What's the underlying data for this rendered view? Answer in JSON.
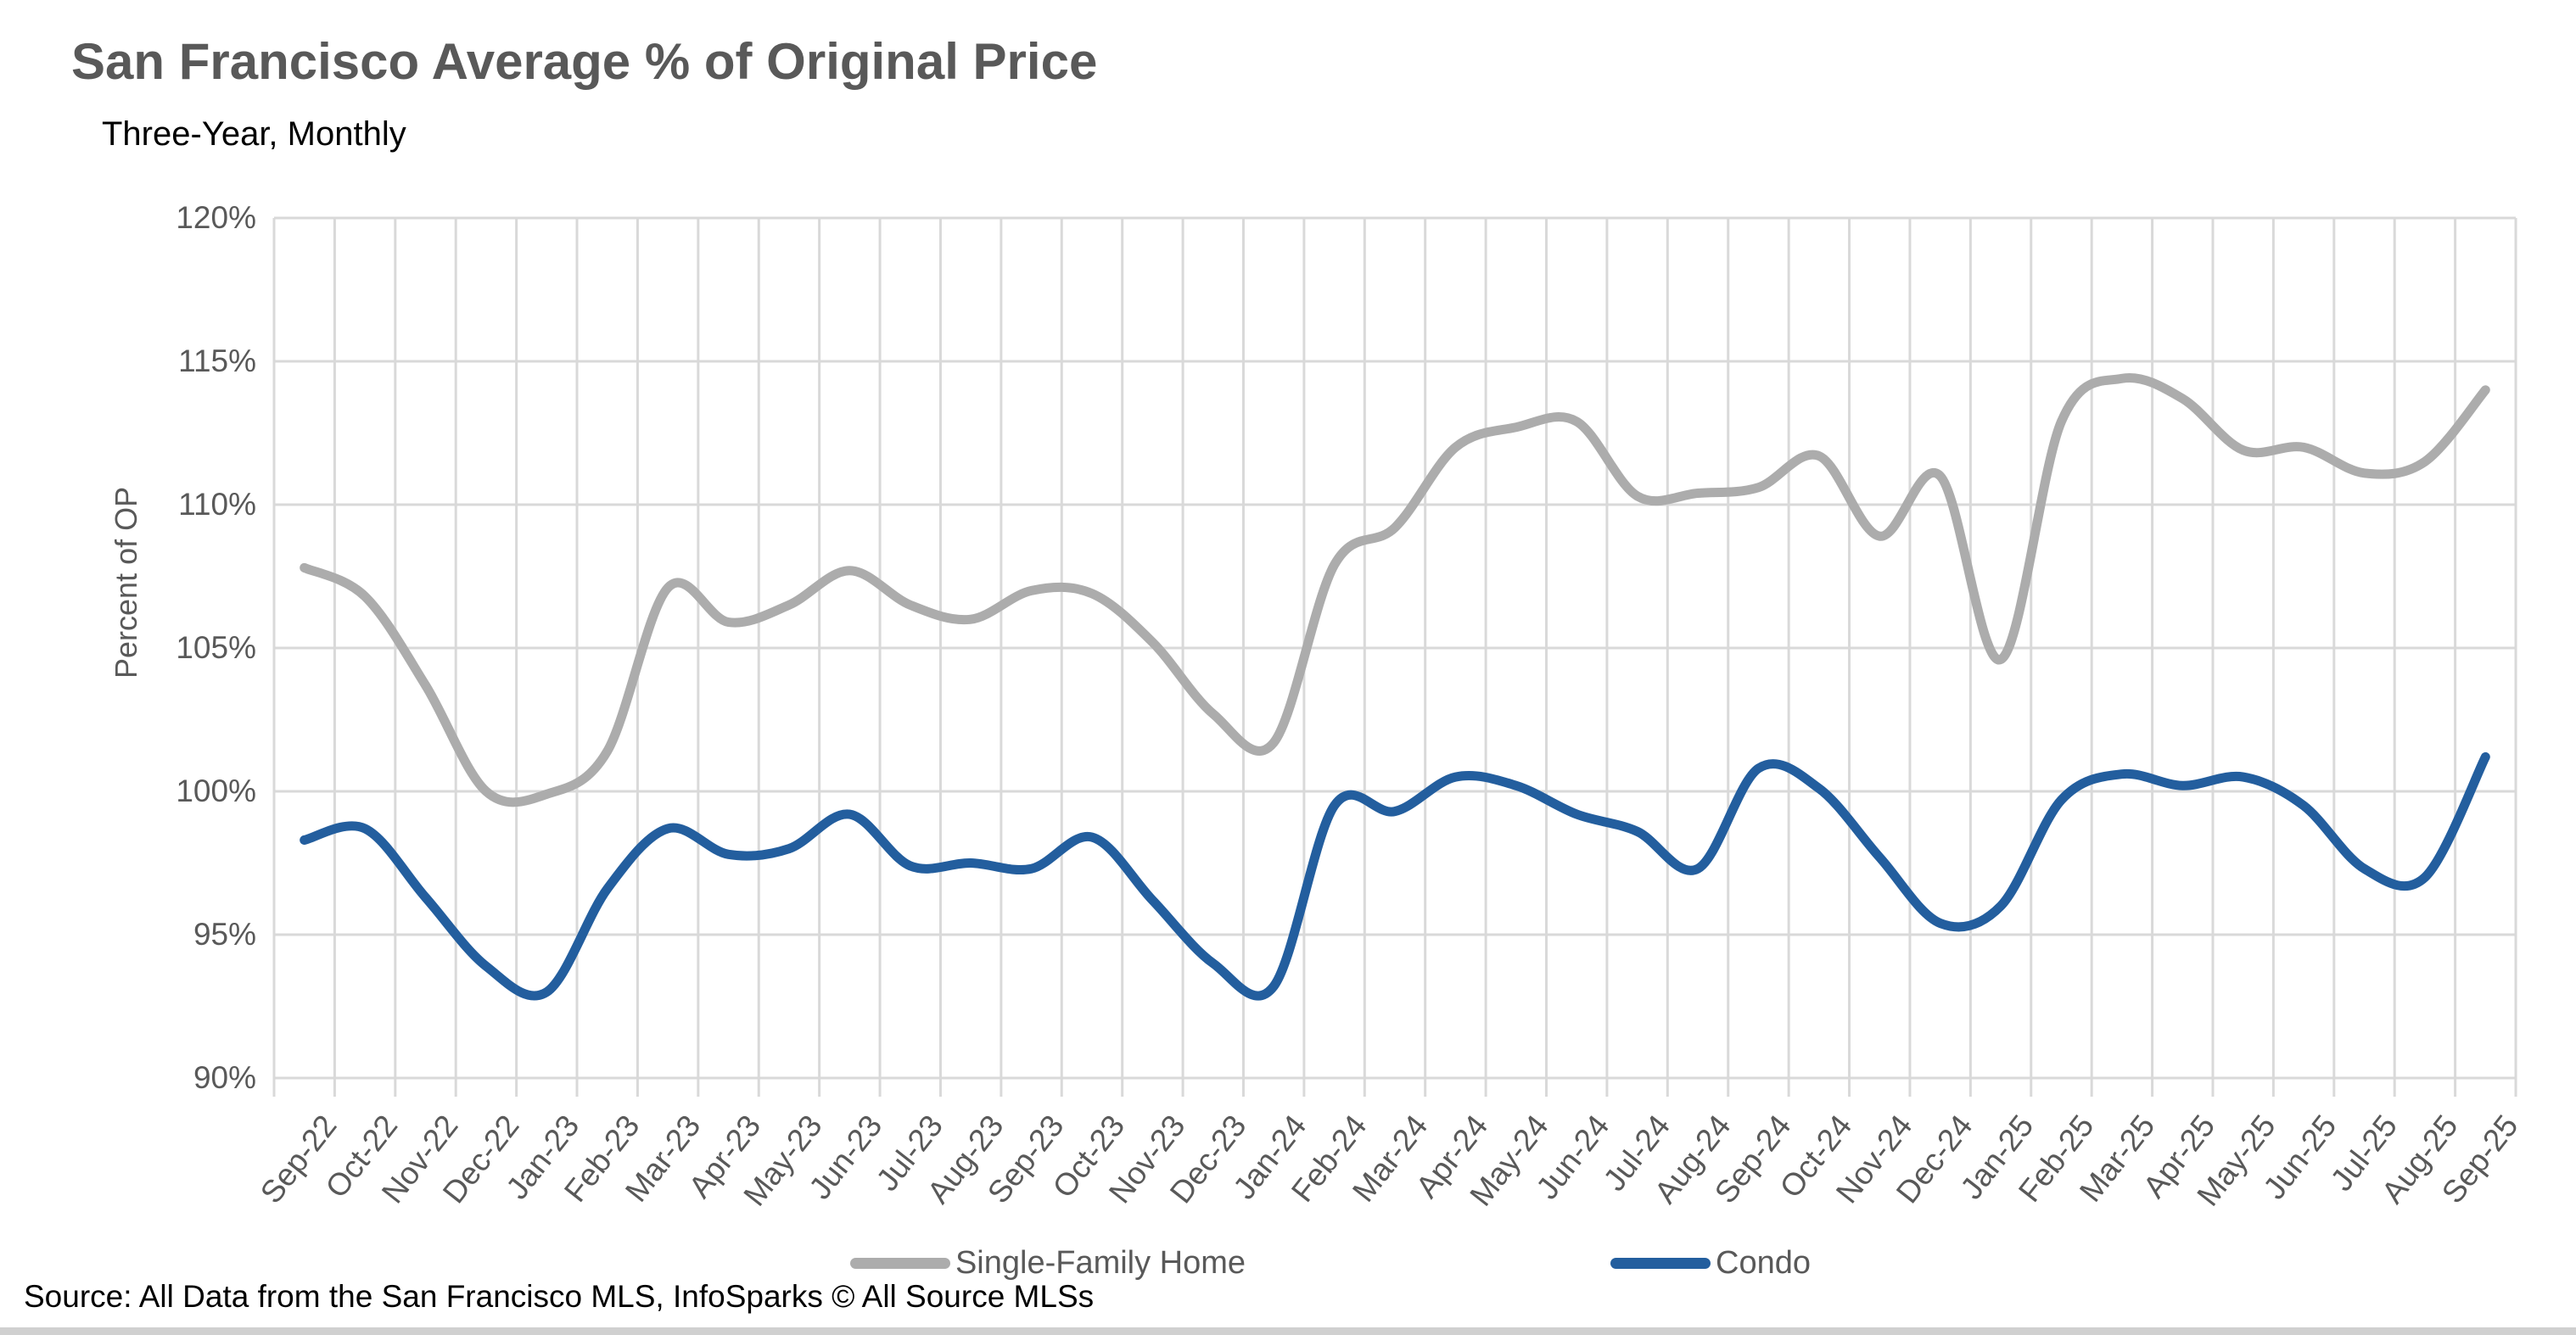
{
  "header": {
    "title": "San Francisco Average % of Original Price",
    "subtitle": "Three-Year, Monthly"
  },
  "source_note": "Source: All Data from the San Francisco MLS, InfoSparks © All Source MLSs",
  "colors": {
    "single_family": "#acacac",
    "condo": "#235e9e",
    "gridline": "#d9d9d9",
    "axis_text": "#595959",
    "title_text": "#595959"
  },
  "chart_data": {
    "type": "line",
    "title": "San Francisco Average % of Original Price",
    "subtitle": "Three-Year, Monthly",
    "xlabel": "",
    "ylabel": "Percent of OP",
    "ylim": [
      90,
      120
    ],
    "ytick_step": 5,
    "ytick_labels": [
      "120%",
      "115%",
      "110%",
      "105%",
      "100%",
      "95%",
      "90%"
    ],
    "grid": true,
    "legend_position": "bottom",
    "line_style": "smooth",
    "categories": [
      "Sep-22",
      "Oct-22",
      "Nov-22",
      "Dec-22",
      "Jan-23",
      "Feb-23",
      "Mar-23",
      "Apr-23",
      "May-23",
      "Jun-23",
      "Jul-23",
      "Aug-23",
      "Sep-23",
      "Oct-23",
      "Nov-23",
      "Dec-23",
      "Jan-24",
      "Feb-24",
      "Mar-24",
      "Apr-24",
      "May-24",
      "Jun-24",
      "Jul-24",
      "Aug-24",
      "Sep-24",
      "Oct-24",
      "Nov-24",
      "Dec-24",
      "Jan-25",
      "Feb-25",
      "Mar-25",
      "Apr-25",
      "May-25",
      "Jun-25",
      "Jul-25",
      "Aug-25",
      "Sep-25"
    ],
    "series": [
      {
        "name": "Single-Family Home",
        "color": "#acacac",
        "values": [
          107.8,
          106.8,
          103.7,
          100.0,
          99.9,
          101.4,
          107.1,
          105.9,
          106.5,
          107.7,
          106.5,
          106.0,
          107.0,
          106.9,
          105.2,
          102.7,
          101.7,
          107.9,
          109.2,
          112.0,
          112.7,
          112.9,
          110.3,
          110.4,
          110.6,
          111.7,
          108.9,
          111.0,
          104.6,
          112.9,
          114.4,
          113.7,
          111.9,
          112.0,
          111.1,
          111.5,
          114.0
        ]
      },
      {
        "name": "Condo",
        "color": "#235e9e",
        "values": [
          98.3,
          98.7,
          96.3,
          93.9,
          93.0,
          96.6,
          98.7,
          97.8,
          98.0,
          99.2,
          97.4,
          97.5,
          97.3,
          98.4,
          96.2,
          94.0,
          93.2,
          99.5,
          99.3,
          100.5,
          100.2,
          99.2,
          98.6,
          97.3,
          100.8,
          100.1,
          97.7,
          95.4,
          96.0,
          99.7,
          100.6,
          100.2,
          100.5,
          99.5,
          97.3,
          97.0,
          101.2
        ]
      }
    ]
  }
}
